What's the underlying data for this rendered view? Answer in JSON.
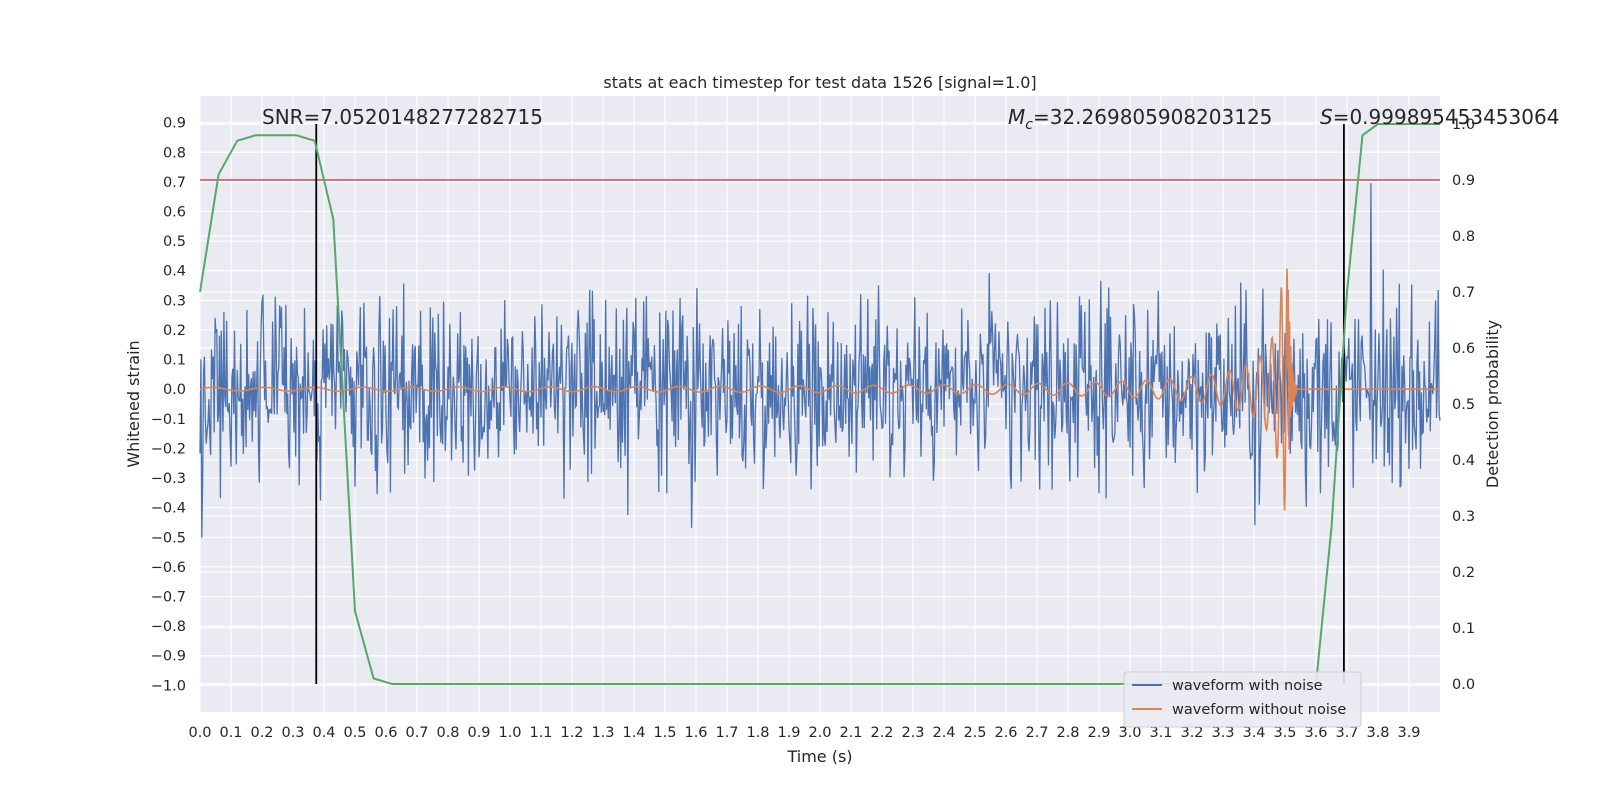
{
  "chart_data": {
    "type": "line",
    "title": "stats at each timestep for test data 1526 [signal=1.0]",
    "xlabel": "Time (s)",
    "ylabel": "Whitened strain",
    "y2label": "Detection probability",
    "xlim": [
      0.0,
      4.0
    ],
    "ylim": [
      -1.09,
      0.99
    ],
    "y2lim": [
      -0.05,
      1.05
    ],
    "x_ticks": [
      0.0,
      0.1,
      0.2,
      0.3,
      0.4,
      0.5,
      0.6,
      0.7,
      0.8,
      0.9,
      1.0,
      1.1,
      1.2,
      1.3,
      1.4,
      1.5,
      1.6,
      1.7,
      1.8,
      1.9,
      2.0,
      2.1,
      2.2,
      2.3,
      2.4,
      2.5,
      2.6,
      2.7,
      2.8,
      2.9,
      3.0,
      3.1,
      3.2,
      3.3,
      3.4,
      3.5,
      3.6,
      3.7,
      3.8,
      3.9
    ],
    "y_ticks": [
      0.9,
      0.8,
      0.7,
      0.6,
      0.5,
      0.4,
      0.3,
      0.2,
      0.1,
      0.0,
      -0.1,
      -0.2,
      -0.3,
      -0.4,
      -0.5,
      -0.6,
      -0.7,
      -0.8,
      -0.9,
      -1.0
    ],
    "y2_ticks": [
      1.0,
      0.9,
      0.8,
      0.7,
      0.6,
      0.5,
      0.4,
      0.3,
      0.2,
      0.1,
      0.0
    ],
    "grid": true,
    "legend_position": "lower-right",
    "annotations": {
      "snr_text": "SNR=7.0520148277282715",
      "mc_text": "=32.269805908203125",
      "s_text": "=0.999895453453064"
    },
    "threshold_y2": 0.9,
    "vertical_markers_x": [
      0.375,
      3.69
    ],
    "series": [
      {
        "name": "waveform with noise",
        "color": "#4c72b0",
        "kind": "noise",
        "amplitude_typical": 0.4,
        "amplitude_max": 0.9
      },
      {
        "name": "waveform without noise",
        "color": "#dd8452",
        "kind": "chirp",
        "merger_time": 3.51,
        "peak_amplitude": 0.41,
        "min_amplitude": -0.43
      },
      {
        "name": "detection probability",
        "color": "#55a868",
        "axis": "right",
        "x": [
          0.0,
          0.06,
          0.12,
          0.18,
          0.25,
          0.31,
          0.37,
          0.43,
          0.5,
          0.56,
          0.62,
          0.7,
          0.8,
          1.0,
          3.0,
          3.5,
          3.6,
          3.65,
          3.7,
          3.75,
          3.8,
          3.9,
          4.0
        ],
        "y": [
          0.7,
          0.91,
          0.97,
          0.98,
          0.98,
          0.98,
          0.97,
          0.83,
          0.13,
          0.01,
          0.0,
          0.0,
          0.0,
          0.0,
          0.0,
          0.0,
          0.0,
          0.28,
          0.7,
          0.98,
          1.0,
          1.0,
          1.0
        ]
      }
    ],
    "colors": {
      "background": "#eaeaf2",
      "grid": "#ffffff",
      "threshold": "#c44e52",
      "marker": "#000000"
    }
  }
}
